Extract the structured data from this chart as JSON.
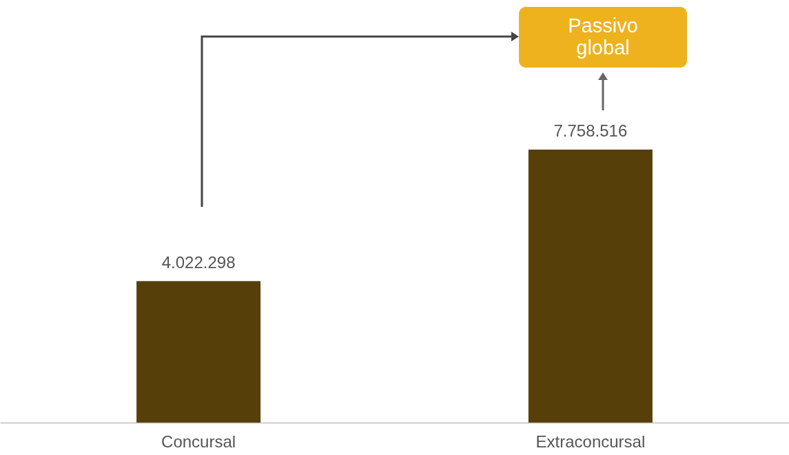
{
  "chart_data": {
    "type": "bar",
    "categories": [
      "Concursal",
      "Extraconcursal"
    ],
    "values": [
      4022298,
      7758516
    ],
    "color": "#573f0a",
    "value_labels": [
      "4.022.298",
      "7.758.516"
    ],
    "annotations": [
      "Passivo global"
    ]
  }
}
